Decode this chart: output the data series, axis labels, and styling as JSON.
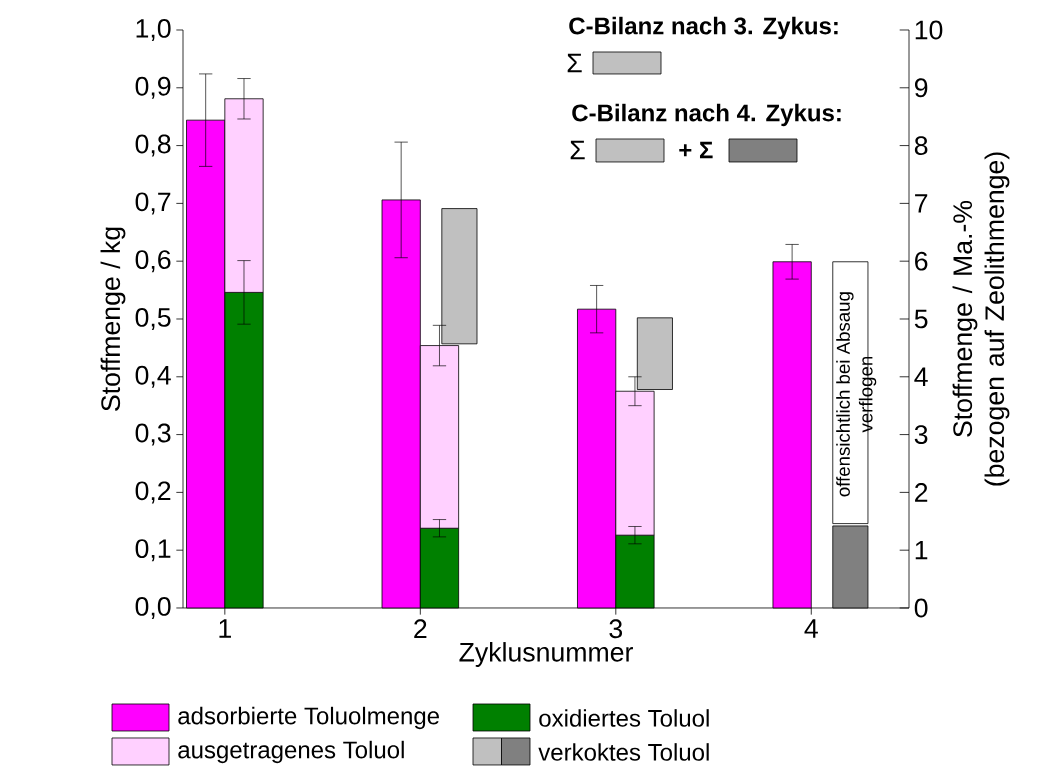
{
  "chart_data": [
    {
      "type": "bar",
      "categories": [
        "1",
        "2",
        "3",
        "4"
      ],
      "xlabel": "Zyklusnummer",
      "ylabel": "Stoffmenge / kg",
      "y2label": "Stoffmenge / Ma.-%\n(bezogen auf Zeolithmenge)",
      "ylim": [
        0,
        1.0
      ],
      "yticks": [
        {
          "value": 0,
          "label": "0,0"
        },
        {
          "value": 0.1,
          "label": "0,1"
        },
        {
          "value": 0.2,
          "label": "0,2"
        },
        {
          "value": 0.3,
          "label": "0,3"
        },
        {
          "value": 0.4,
          "label": "0,4"
        },
        {
          "value": 0.5,
          "label": "0,5"
        },
        {
          "value": 0.6,
          "label": "0,6"
        },
        {
          "value": 0.7,
          "label": "0,7"
        },
        {
          "value": 0.8,
          "label": "0,8"
        },
        {
          "value": 0.9,
          "label": "0,9"
        },
        {
          "value": 1.0,
          "label": "1,0"
        }
      ],
      "y2lim": [
        0,
        10
      ],
      "y2ticks": [
        0,
        1,
        2,
        3,
        4,
        5,
        6,
        7,
        8,
        9,
        10
      ],
      "legend": "bottom",
      "series": [
        {
          "name": "adsorbierte Toluolmenge",
          "color": "#ff00ff",
          "values": [
            0.844,
            0.706,
            0.517,
            0.599
          ],
          "errors": [
            0.08,
            0.1,
            0.041,
            0.03
          ]
        },
        {
          "name": "verkoktes Toluol",
          "colors": [
            null,
            "#c0c0c0",
            "#c0c0c0",
            "#808080"
          ],
          "values": [
            null,
            0.234,
            0.124,
            0.142
          ],
          "base": [
            null,
            0.457,
            0.378,
            0
          ]
        },
        {
          "color": "#ffffff",
          "values": [
            null,
            null,
            null,
            0.453
          ],
          "base": [
            null,
            null,
            null,
            0.146
          ]
        }
      ],
      "annotations": [
        "C-Bilanz nach 3. Zykus:",
        "Σ",
        "C-Bilanz nach 4. Zykus:",
        "Σ",
        "+ Σ",
        {
          "text": "offensichtlich bei Absaug verflogen",
          "x": "4",
          "y": 0.37
        }
      ]
    },
    {
      "type": "bar",
      "categories": [
        "1",
        "2",
        "3",
        "4"
      ],
      "ylim": [
        0,
        1.0
      ],
      "tick_labels": false,
      "stacked": true,
      "legend": "bottom",
      "series": [
        {
          "name": "oxidiertes Toluol",
          "color": "#008000",
          "values": [
            0.546,
            0.138,
            0.126,
            null
          ],
          "errors": [
            0.055,
            0.015,
            0.015,
            null
          ]
        },
        {
          "name": "ausgetragenes Toluol",
          "color": "#ffd0ff",
          "values": [
            0.335,
            0.316,
            0.249,
            null
          ],
          "errors": [
            0.035,
            0.035,
            0.025,
            null
          ]
        }
      ]
    }
  ]
}
